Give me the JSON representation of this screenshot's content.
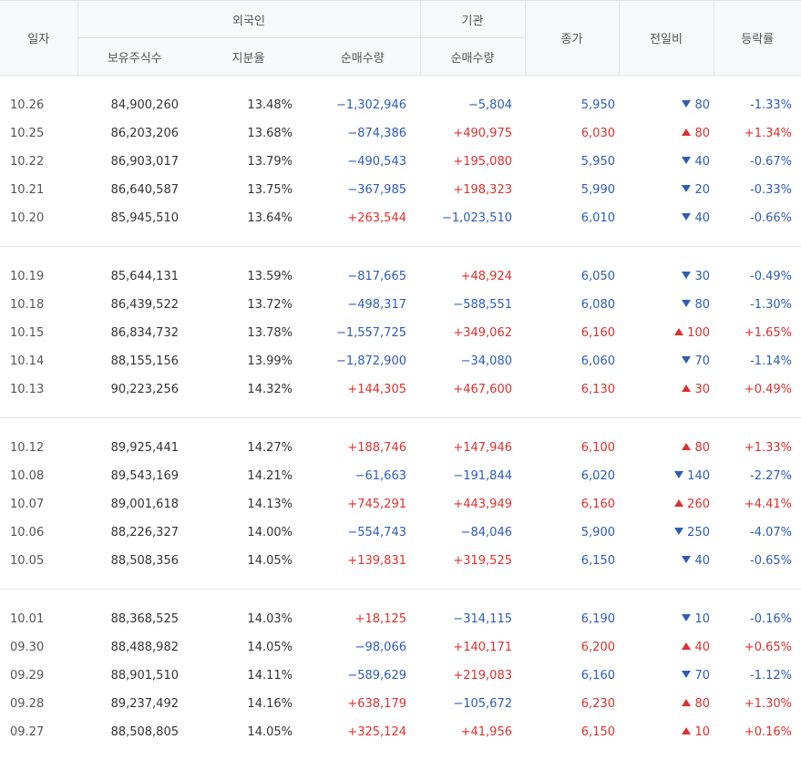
{
  "header": {
    "date": "일자",
    "foreign": "외국인",
    "institution": "기관",
    "close": "종가",
    "change": "전일비",
    "rate": "등락률",
    "holdings": "보유주식수",
    "share": "지분율",
    "net_foreign": "순매수량",
    "net_inst": "순매수량"
  },
  "groups": [
    [
      {
        "date": "10.26",
        "holdings": "84,900,260",
        "share": "13.48%",
        "foreign": "−1,302,946",
        "inst": "−5,804",
        "close": "5,950",
        "dir": "down",
        "change": "80",
        "rate": "-1.33%"
      },
      {
        "date": "10.25",
        "holdings": "86,203,206",
        "share": "13.68%",
        "foreign": "−874,386",
        "inst": "+490,975",
        "close": "6,030",
        "dir": "up",
        "change": "80",
        "rate": "+1.34%"
      },
      {
        "date": "10.22",
        "holdings": "86,903,017",
        "share": "13.79%",
        "foreign": "−490,543",
        "inst": "+195,080",
        "close": "5,950",
        "dir": "down",
        "change": "40",
        "rate": "-0.67%"
      },
      {
        "date": "10.21",
        "holdings": "86,640,587",
        "share": "13.75%",
        "foreign": "−367,985",
        "inst": "+198,323",
        "close": "5,990",
        "dir": "down",
        "change": "20",
        "rate": "-0.33%"
      },
      {
        "date": "10.20",
        "holdings": "85,945,510",
        "share": "13.64%",
        "foreign": "+263,544",
        "inst": "−1,023,510",
        "close": "6,010",
        "dir": "down",
        "change": "40",
        "rate": "-0.66%"
      }
    ],
    [
      {
        "date": "10.19",
        "holdings": "85,644,131",
        "share": "13.59%",
        "foreign": "−817,665",
        "inst": "+48,924",
        "close": "6,050",
        "dir": "down",
        "change": "30",
        "rate": "-0.49%"
      },
      {
        "date": "10.18",
        "holdings": "86,439,522",
        "share": "13.72%",
        "foreign": "−498,317",
        "inst": "−588,551",
        "close": "6,080",
        "dir": "down",
        "change": "80",
        "rate": "-1.30%"
      },
      {
        "date": "10.15",
        "holdings": "86,834,732",
        "share": "13.78%",
        "foreign": "−1,557,725",
        "inst": "+349,062",
        "close": "6,160",
        "dir": "up",
        "change": "100",
        "rate": "+1.65%"
      },
      {
        "date": "10.14",
        "holdings": "88,155,156",
        "share": "13.99%",
        "foreign": "−1,872,900",
        "inst": "−34,080",
        "close": "6,060",
        "dir": "down",
        "change": "70",
        "rate": "-1.14%"
      },
      {
        "date": "10.13",
        "holdings": "90,223,256",
        "share": "14.32%",
        "foreign": "+144,305",
        "inst": "+467,600",
        "close": "6,130",
        "dir": "up",
        "change": "30",
        "rate": "+0.49%"
      }
    ],
    [
      {
        "date": "10.12",
        "holdings": "89,925,441",
        "share": "14.27%",
        "foreign": "+188,746",
        "inst": "+147,946",
        "close": "6,100",
        "dir": "up",
        "change": "80",
        "rate": "+1.33%"
      },
      {
        "date": "10.08",
        "holdings": "89,543,169",
        "share": "14.21%",
        "foreign": "−61,663",
        "inst": "−191,844",
        "close": "6,020",
        "dir": "down",
        "change": "140",
        "rate": "-2.27%"
      },
      {
        "date": "10.07",
        "holdings": "89,001,618",
        "share": "14.13%",
        "foreign": "+745,291",
        "inst": "+443,949",
        "close": "6,160",
        "dir": "up",
        "change": "260",
        "rate": "+4.41%"
      },
      {
        "date": "10.06",
        "holdings": "88,226,327",
        "share": "14.00%",
        "foreign": "−554,743",
        "inst": "−84,046",
        "close": "5,900",
        "dir": "down",
        "change": "250",
        "rate": "-4.07%"
      },
      {
        "date": "10.05",
        "holdings": "88,508,356",
        "share": "14.05%",
        "foreign": "+139,831",
        "inst": "+319,525",
        "close": "6,150",
        "dir": "down",
        "change": "40",
        "rate": "-0.65%"
      }
    ],
    [
      {
        "date": "10.01",
        "holdings": "88,368,525",
        "share": "14.03%",
        "foreign": "+18,125",
        "inst": "−314,115",
        "close": "6,190",
        "dir": "down",
        "change": "10",
        "rate": "-0.16%"
      },
      {
        "date": "09.30",
        "holdings": "88,488,982",
        "share": "14.05%",
        "foreign": "−98,066",
        "inst": "+140,171",
        "close": "6,200",
        "dir": "up",
        "change": "40",
        "rate": "+0.65%"
      },
      {
        "date": "09.29",
        "holdings": "88,901,510",
        "share": "14.11%",
        "foreign": "−589,629",
        "inst": "+219,083",
        "close": "6,160",
        "dir": "down",
        "change": "70",
        "rate": "-1.12%"
      },
      {
        "date": "09.28",
        "holdings": "89,237,492",
        "share": "14.16%",
        "foreign": "+638,179",
        "inst": "−105,672",
        "close": "6,230",
        "dir": "up",
        "change": "80",
        "rate": "+1.30%"
      },
      {
        "date": "09.27",
        "holdings": "88,508,805",
        "share": "14.05%",
        "foreign": "+325,124",
        "inst": "+41,956",
        "close": "6,150",
        "dir": "up",
        "change": "10",
        "rate": "+0.16%"
      }
    ]
  ]
}
